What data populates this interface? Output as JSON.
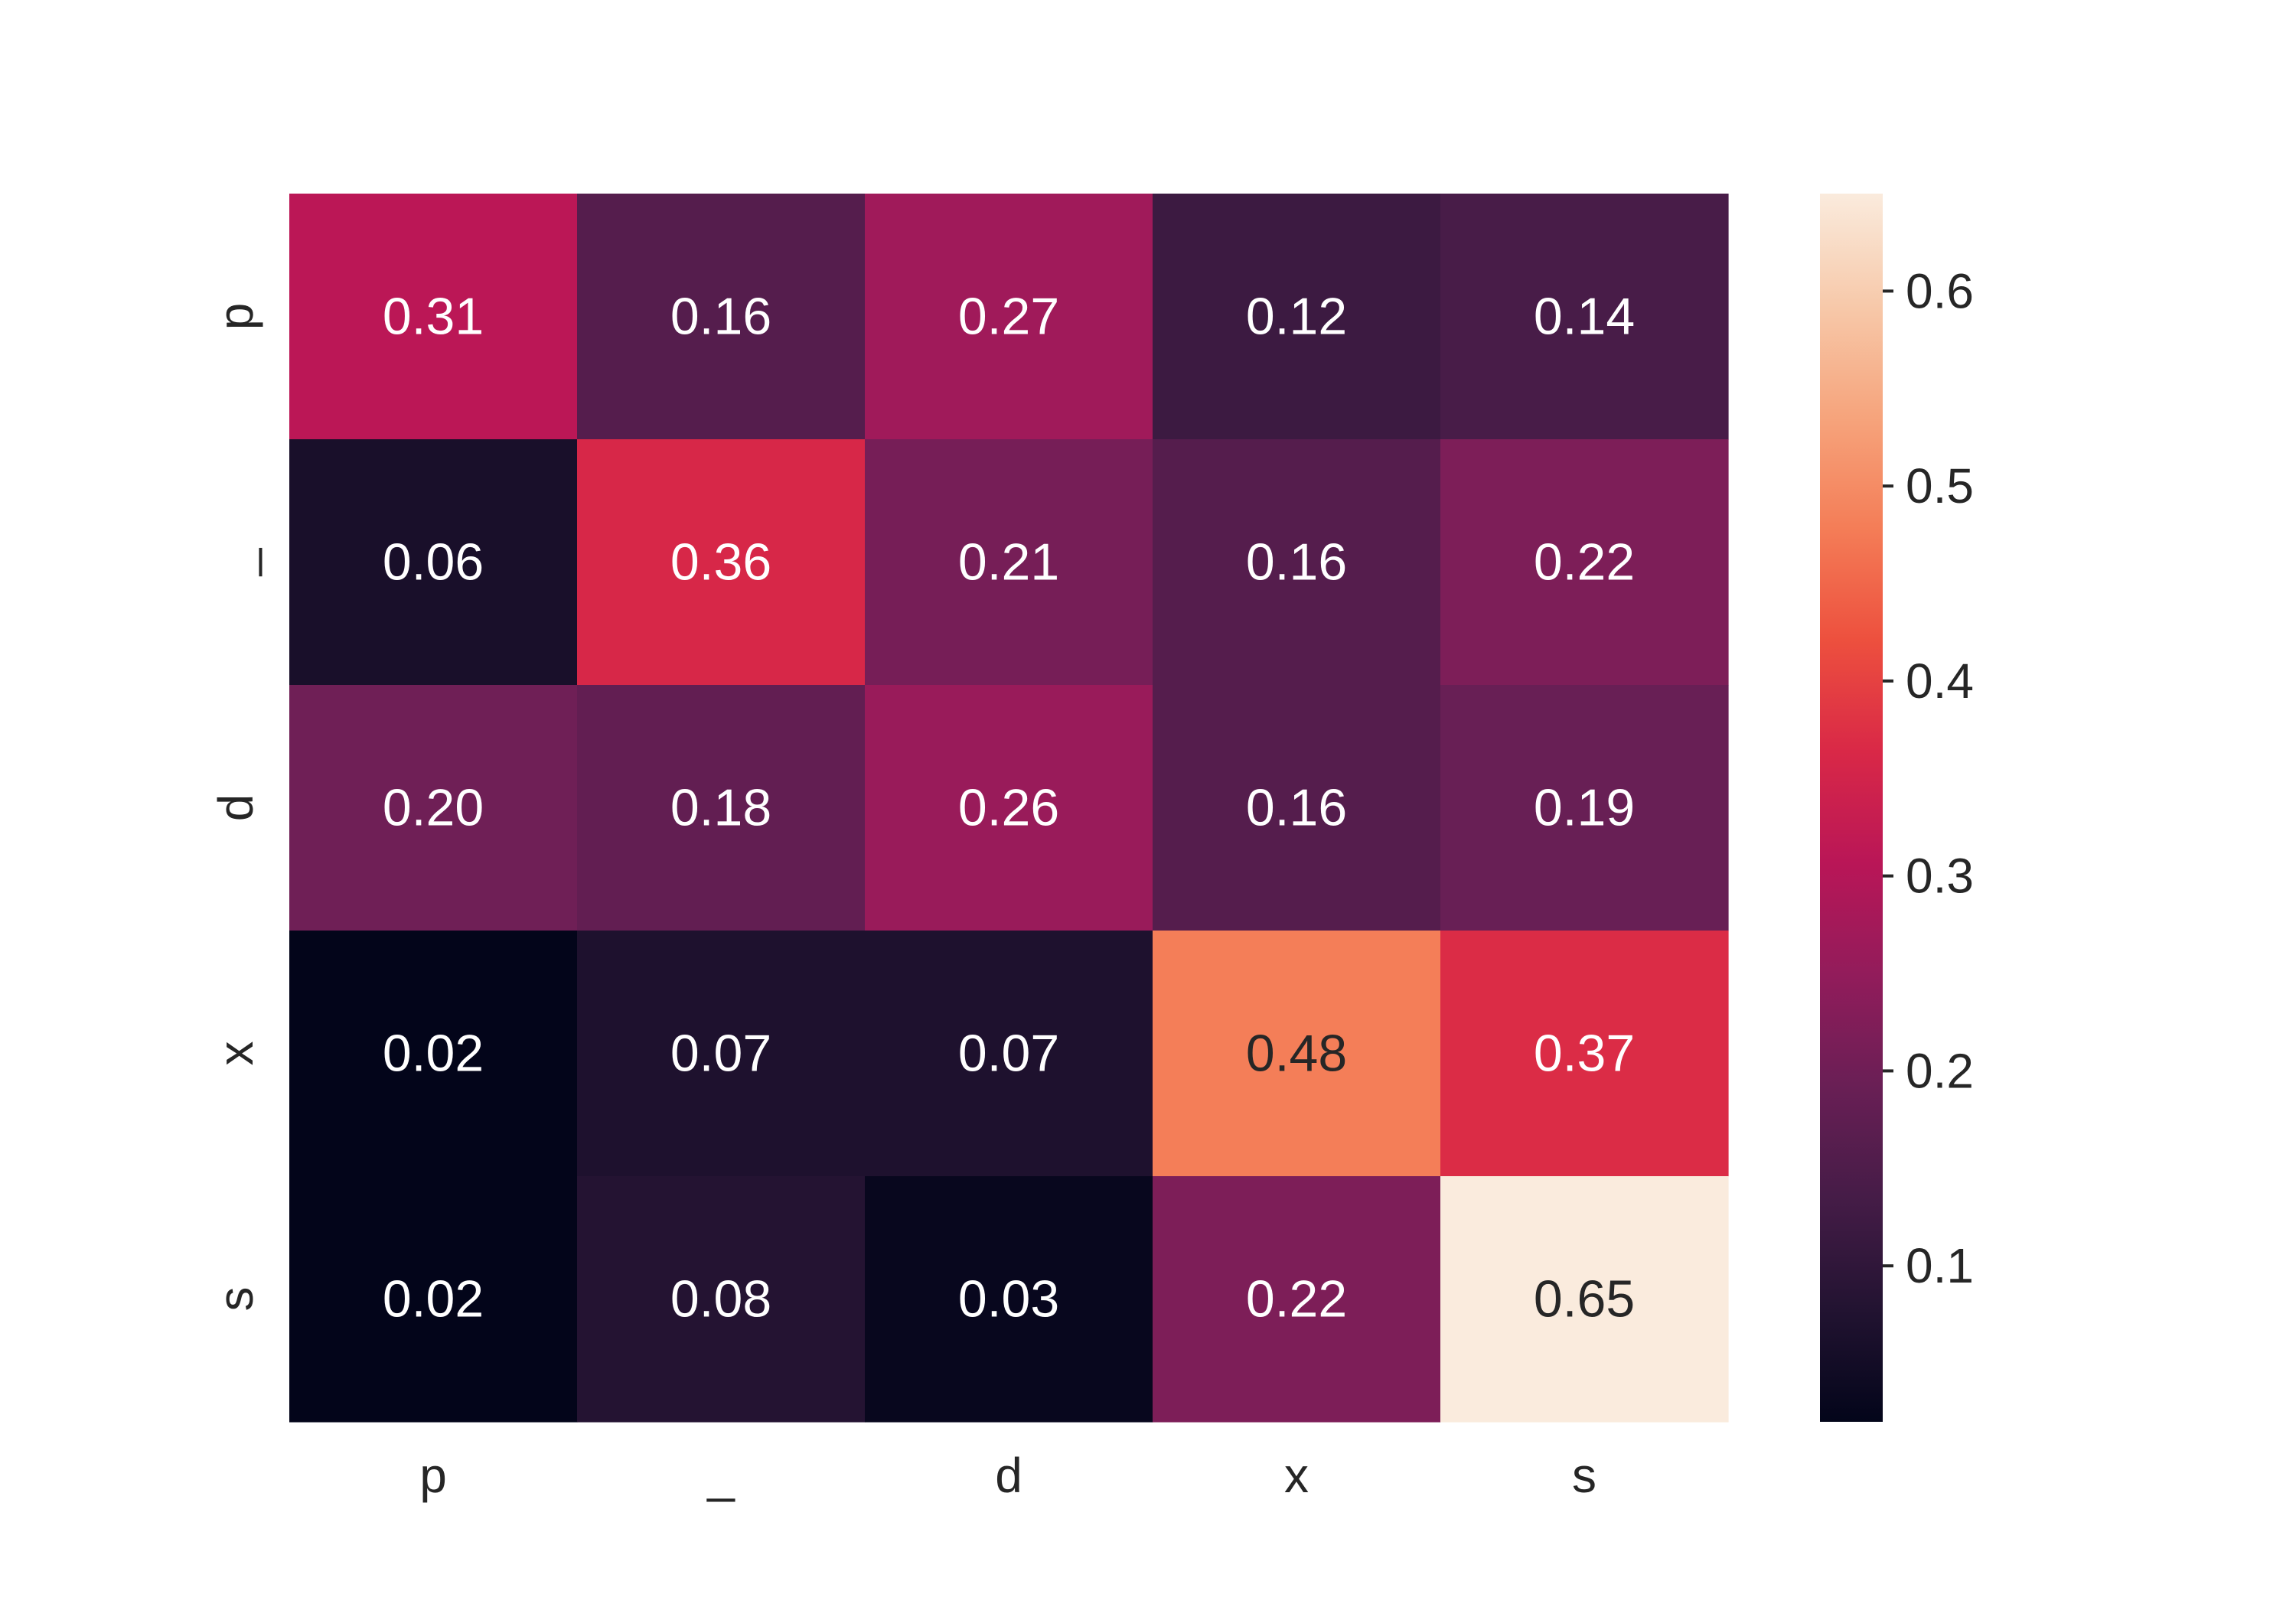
{
  "chart_data": {
    "type": "heatmap",
    "title": "",
    "xlabel": "",
    "ylabel": "",
    "x_categories": [
      "p",
      "_",
      "d",
      "x",
      "s"
    ],
    "y_categories": [
      "p",
      "_",
      "d",
      "x",
      "s"
    ],
    "values": [
      [
        0.31,
        0.16,
        0.27,
        0.12,
        0.14
      ],
      [
        0.06,
        0.36,
        0.21,
        0.16,
        0.22
      ],
      [
        0.2,
        0.18,
        0.26,
        0.16,
        0.19
      ],
      [
        0.02,
        0.07,
        0.07,
        0.48,
        0.37
      ],
      [
        0.02,
        0.08,
        0.03,
        0.22,
        0.65
      ]
    ],
    "cell_labels": [
      [
        "0.31",
        "0.16",
        "0.27",
        "0.12",
        "0.14"
      ],
      [
        "0.06",
        "0.36",
        "0.21",
        "0.16",
        "0.22"
      ],
      [
        "0.20",
        "0.18",
        "0.26",
        "0.16",
        "0.19"
      ],
      [
        "0.02",
        "0.07",
        "0.07",
        "0.48",
        "0.37"
      ],
      [
        "0.02",
        "0.08",
        "0.03",
        "0.22",
        "0.65"
      ]
    ],
    "colorbar": {
      "vmin": 0.02,
      "vmax": 0.65,
      "ticks": [
        0.1,
        0.2,
        0.3,
        0.4,
        0.5,
        0.6
      ],
      "tick_labels": [
        "0.1",
        "0.2",
        "0.3",
        "0.4",
        "0.5",
        "0.6"
      ]
    },
    "colormap": "rocket",
    "colormap_stops": [
      "#03051a",
      "#221331",
      "#451c47",
      "#691f55",
      "#921c5b",
      "#b91657",
      "#d92847",
      "#ed503e",
      "#f47d57",
      "#f6a47c",
      "#f7c9aa",
      "#faebdd"
    ],
    "annotation_colors": {
      "on_dark": "#ffffff",
      "on_light": "#262626"
    },
    "grid": false,
    "legend": "colorbar-right"
  }
}
